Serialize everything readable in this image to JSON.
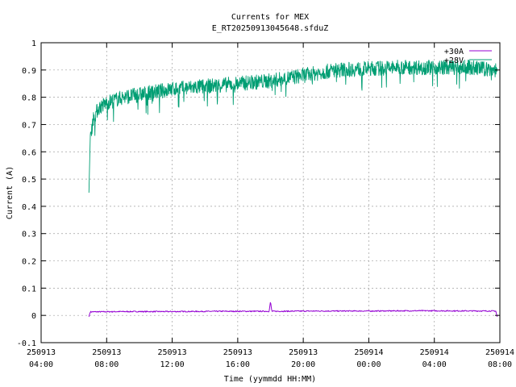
{
  "chart_data": {
    "type": "line",
    "title": "Currents for MEX",
    "subtitle": "E_RT20250913045648.sfduZ",
    "xlabel": "Time (yymmdd HH:MM)",
    "ylabel": "Current (A)",
    "ylim": [
      -0.1,
      1.0
    ],
    "yticks": [
      -0.1,
      0,
      0.1,
      0.2,
      0.3,
      0.4,
      0.5,
      0.6,
      0.7,
      0.8,
      0.9,
      1
    ],
    "ytick_labels": [
      "-0.1",
      "0",
      "0.1",
      "0.2",
      "0.3",
      "0.4",
      "0.5",
      "0.6",
      "0.7",
      "0.8",
      "0.9",
      "1"
    ],
    "xlim": [
      "2025-09-13 04:00",
      "2025-09-14 08:00"
    ],
    "xticks": [
      {
        "time": "2025-09-13 04:00",
        "date": "250913",
        "hm": "04:00"
      },
      {
        "time": "2025-09-13 08:00",
        "date": "250913",
        "hm": "08:00"
      },
      {
        "time": "2025-09-13 12:00",
        "date": "250913",
        "hm": "12:00"
      },
      {
        "time": "2025-09-13 16:00",
        "date": "250913",
        "hm": "16:00"
      },
      {
        "time": "2025-09-13 20:00",
        "date": "250913",
        "hm": "20:00"
      },
      {
        "time": "2025-09-14 00:00",
        "date": "250914",
        "hm": "00:00"
      },
      {
        "time": "2025-09-14 04:00",
        "date": "250914",
        "hm": "04:00"
      },
      {
        "time": "2025-09-14 08:00",
        "date": "250914",
        "hm": "08:00"
      }
    ],
    "grid": true,
    "legend_position": "top-right",
    "series": [
      {
        "name": "+30A",
        "color": "#9400d3",
        "style": "noisy-line",
        "points": [
          {
            "x": "2025-09-13 06:55",
            "y": -0.005
          },
          {
            "x": "2025-09-13 07:00",
            "y": 0.013
          },
          {
            "x": "2025-09-13 09:00",
            "y": 0.014
          },
          {
            "x": "2025-09-13 12:00",
            "y": 0.014
          },
          {
            "x": "2025-09-13 15:00",
            "y": 0.015
          },
          {
            "x": "2025-09-13 17:55",
            "y": 0.015
          },
          {
            "x": "2025-09-13 18:00",
            "y": 0.05
          },
          {
            "x": "2025-09-13 18:05",
            "y": 0.015
          },
          {
            "x": "2025-09-13 21:00",
            "y": 0.016
          },
          {
            "x": "2025-09-14 00:00",
            "y": 0.016
          },
          {
            "x": "2025-09-14 03:00",
            "y": 0.017
          },
          {
            "x": "2025-09-14 07:45",
            "y": 0.016
          },
          {
            "x": "2025-09-14 07:50",
            "y": -0.005
          }
        ]
      },
      {
        "name": "+28V",
        "color": "#009e73",
        "style": "noisy-band",
        "points": [
          {
            "x": "2025-09-13 06:55",
            "y": 0.45
          },
          {
            "x": "2025-09-13 07:00",
            "y": 0.66
          },
          {
            "x": "2025-09-13 07:10",
            "y": 0.72
          },
          {
            "x": "2025-09-13 07:30",
            "y": 0.76
          },
          {
            "x": "2025-09-13 08:00",
            "y": 0.78
          },
          {
            "x": "2025-09-13 09:00",
            "y": 0.8
          },
          {
            "x": "2025-09-13 10:00",
            "y": 0.81
          },
          {
            "x": "2025-09-13 12:00",
            "y": 0.83
          },
          {
            "x": "2025-09-13 14:00",
            "y": 0.84
          },
          {
            "x": "2025-09-13 16:00",
            "y": 0.85
          },
          {
            "x": "2025-09-13 18:00",
            "y": 0.86
          },
          {
            "x": "2025-09-13 20:00",
            "y": 0.88
          },
          {
            "x": "2025-09-13 22:00",
            "y": 0.9
          },
          {
            "x": "2025-09-14 00:00",
            "y": 0.905
          },
          {
            "x": "2025-09-14 02:00",
            "y": 0.91
          },
          {
            "x": "2025-09-14 04:00",
            "y": 0.91
          },
          {
            "x": "2025-09-14 06:00",
            "y": 0.91
          },
          {
            "x": "2025-09-14 07:50",
            "y": 0.9
          }
        ]
      }
    ]
  }
}
